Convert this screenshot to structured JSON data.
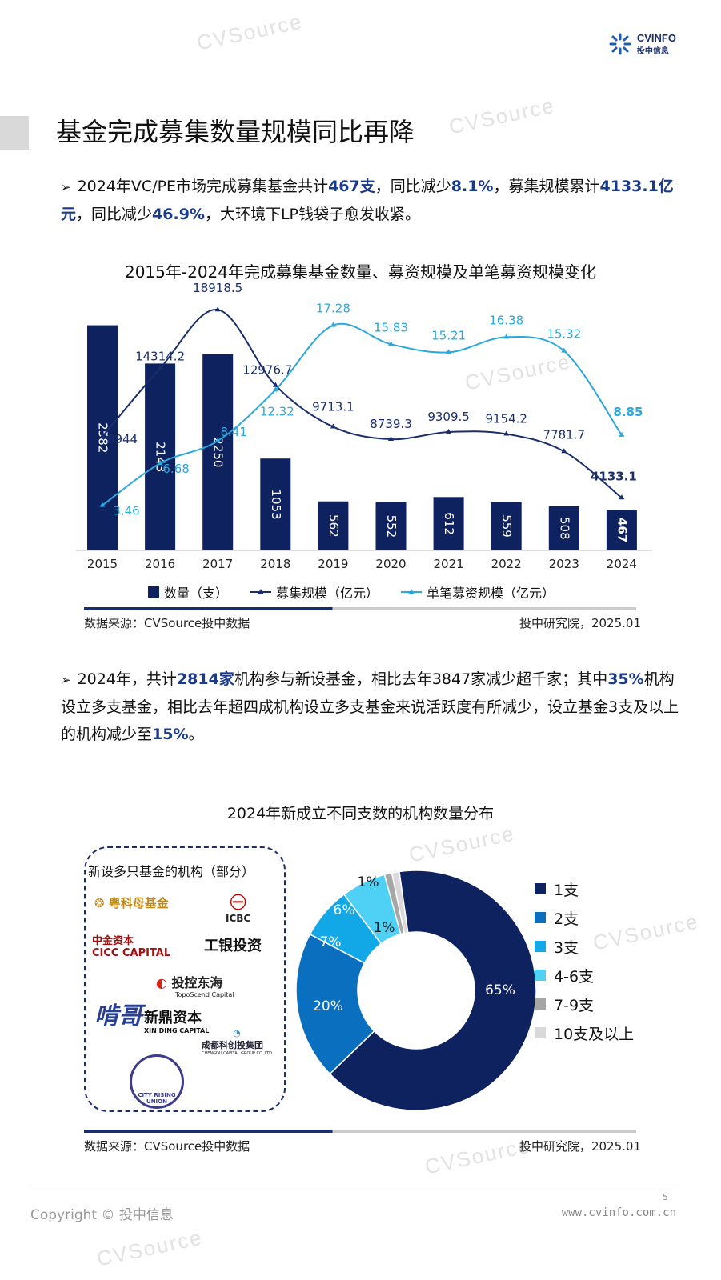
{
  "brand": {
    "name": "CVINFO",
    "sub": "投中信息",
    "watermark": "CVSource",
    "watermark_sub": "投中数据"
  },
  "title": "基金完成募集数量规模同比再降",
  "para1": {
    "t1": "2024年VC/PE市场完成募集基金共计",
    "b1": "467支",
    "t2": "，同比减少",
    "b2": "8.1%",
    "t3": "，募集规模累计",
    "b3": "4133.1亿元",
    "t4": "，同比减少",
    "b4": "46.9%",
    "t5": "，大环境下LP钱袋子愈发收紧。"
  },
  "para2": {
    "t1": "2024年，共计",
    "b1": "2814家",
    "t2": "机构参与新设基金，相比去年3847家减少超千家；其中",
    "b2": "35%",
    "t3": "机构设立多支基金，相比去年超四成机构设立多支基金来说活跃度有所减少，设立基金3支及以上的机构减少至",
    "b3": "15%",
    "t4": "。"
  },
  "source1": "数据来源：CVSource投中数据",
  "credit1": "投中研究院，2025.01",
  "source2": "数据来源：CVSource投中数据",
  "credit2": "投中研究院，2025.01",
  "orgs": {
    "title": "新设多只基金的机构（部分）",
    "items": [
      "粤科母基金",
      "ICBC",
      "中金资本",
      "CICC CAPITAL",
      "工银投资",
      "投控东海",
      "TopoScend Capital",
      "新鼎资本",
      "XIN DING CAPITAL",
      "成都科创投集团",
      "CHENGDU CAPITAL GROUP CO.,LTD",
      "啃哥",
      "CITY RISING UNION"
    ]
  },
  "footer": {
    "copyright": "Copyright © 投中信息",
    "page": "5",
    "url": "www.cvinfo.com.cn"
  },
  "chart_data": [
    {
      "type": "bar+line",
      "title": "2015年-2024年完成募集基金数量、募资规模及单笔募资规模变化",
      "categories": [
        "2015",
        "2016",
        "2017",
        "2018",
        "2019",
        "2020",
        "2021",
        "2022",
        "2023",
        "2024"
      ],
      "series": [
        {
          "name": "数量（支）",
          "type": "bar",
          "color": "#0e2260",
          "values": [
            2582,
            2143,
            2250,
            1053,
            562,
            552,
            612,
            559,
            508,
            467
          ]
        },
        {
          "name": "募集规模（亿元）",
          "type": "line",
          "color": "#1a2e6b",
          "values": [
            8944,
            14314.2,
            18918.5,
            12976.7,
            9713.1,
            8739.3,
            9309.5,
            9154.2,
            7781.7,
            4133.1
          ]
        },
        {
          "name": "单笔募资规模（亿元）",
          "type": "line",
          "color": "#2aa7de",
          "values": [
            3.46,
            6.68,
            8.41,
            12.32,
            17.28,
            15.83,
            15.21,
            16.38,
            15.32,
            8.85
          ]
        }
      ],
      "legend": "bottom"
    },
    {
      "type": "pie",
      "title": "2024年新成立不同支数的机构数量分布",
      "categories": [
        "1支",
        "2支",
        "3支",
        "4-6支",
        "7-9支",
        "10支及以上"
      ],
      "values": [
        65,
        20,
        7,
        6,
        1,
        1
      ],
      "labels": [
        "65%",
        "20%",
        "7%",
        "6%",
        "1%",
        "1%"
      ],
      "colors": [
        "#0e2260",
        "#0b6fc0",
        "#12a8e8",
        "#4fd0f5",
        "#a6a6a6",
        "#d9d9d9"
      ],
      "legend": "right"
    }
  ]
}
